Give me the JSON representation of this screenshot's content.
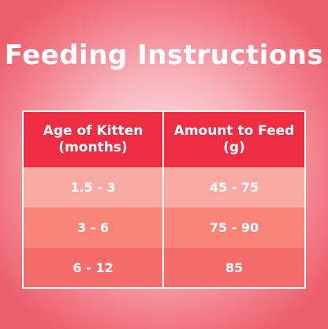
{
  "title": "Feeding Instructions",
  "table": {
    "headers": [
      "Age of Kitten (months)",
      "Amount to Feed (g)"
    ],
    "rows": [
      {
        "age": "1.5 - 3",
        "amount": "45 - 75"
      },
      {
        "age": "3 - 6",
        "amount": "75 - 90"
      },
      {
        "age": "6 - 12",
        "amount": "85"
      }
    ]
  },
  "colors": {
    "header": "#ee2d43",
    "row_1": "#f9a9a4",
    "row_2": "#f88478",
    "row_3": "#f56d6a",
    "text": "#ffffff"
  }
}
